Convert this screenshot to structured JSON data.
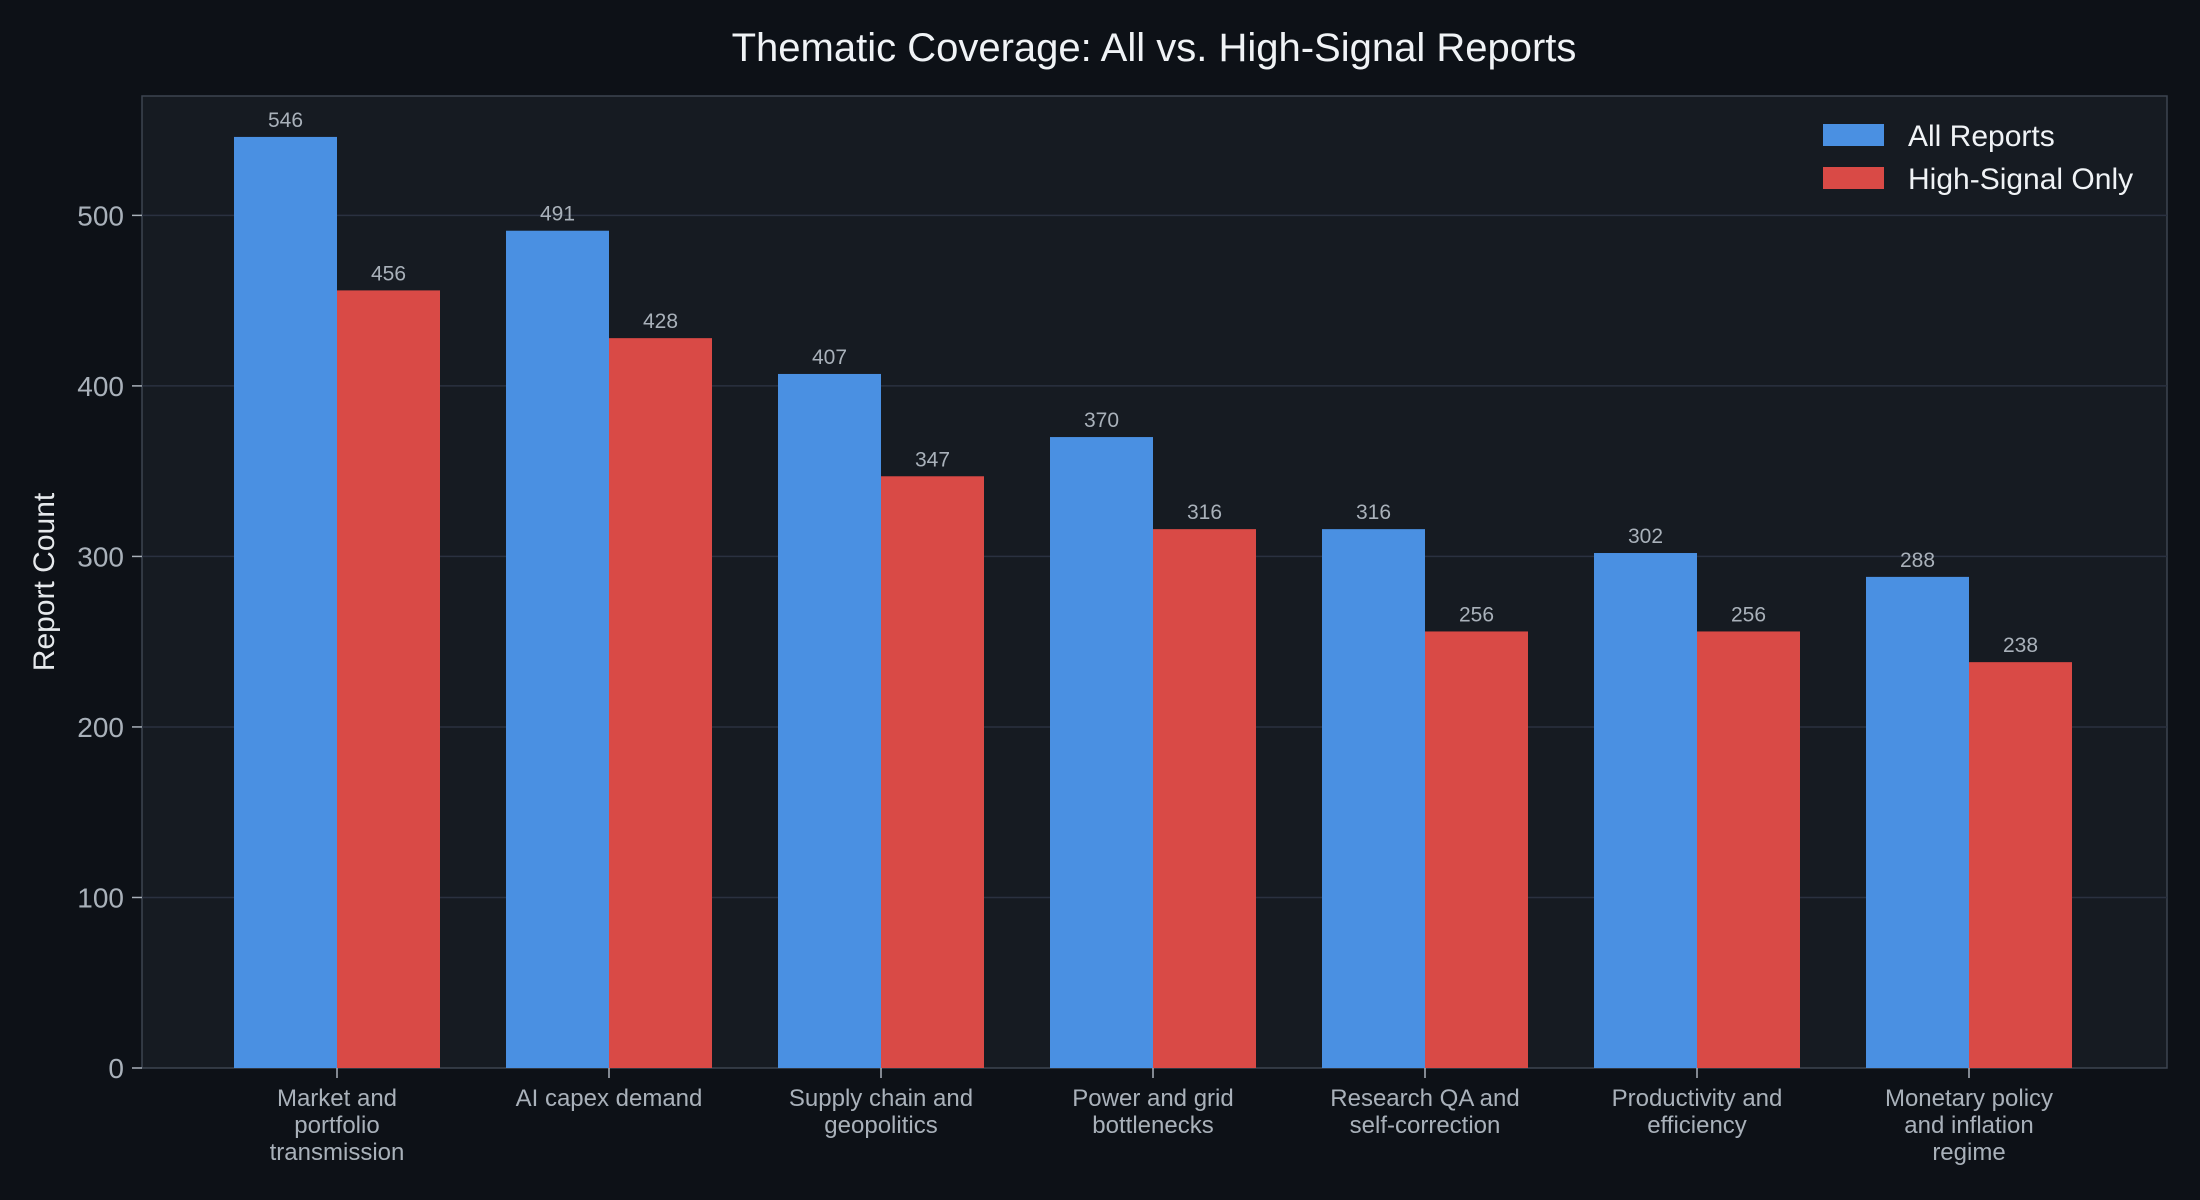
{
  "chart_data": {
    "type": "bar",
    "title": "Thematic Coverage: All vs. High-Signal Reports",
    "xlabel": "",
    "ylabel": "Report Count",
    "ylim": [
      0,
      570
    ],
    "yticks": [
      0,
      100,
      200,
      300,
      400,
      500
    ],
    "grid": true,
    "legend_position": "top-right",
    "categories": [
      [
        "Market and",
        "portfolio",
        "transmission"
      ],
      [
        "AI capex demand"
      ],
      [
        "Supply chain and",
        "geopolitics"
      ],
      [
        "Power and grid",
        "bottlenecks"
      ],
      [
        "Research QA and",
        "self-correction"
      ],
      [
        "Productivity and",
        "efficiency"
      ],
      [
        "Monetary policy",
        "and inflation",
        "regime"
      ]
    ],
    "series": [
      {
        "name": "All Reports",
        "color": "#4a90e2",
        "values": [
          546,
          491,
          407,
          370,
          316,
          302,
          288
        ]
      },
      {
        "name": "High-Signal Only",
        "color": "#d94a46",
        "values": [
          456,
          428,
          347,
          316,
          256,
          256,
          238
        ]
      }
    ]
  },
  "colors": {
    "background": "#0d1117",
    "plot_background": "#161b22",
    "grid": "#2a3140",
    "axis": "#3d4450"
  }
}
